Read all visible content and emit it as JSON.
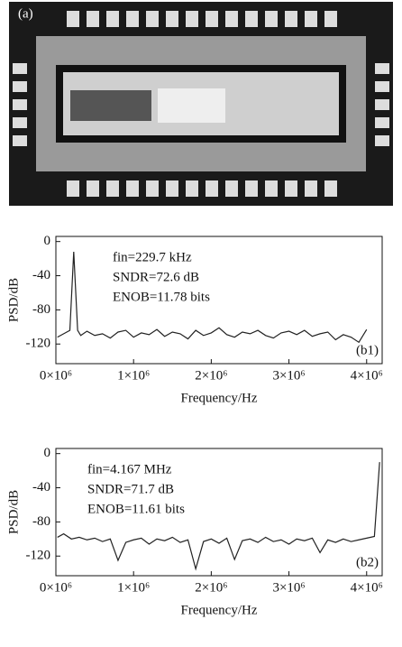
{
  "panel_a": {
    "label": "(a)"
  },
  "chart_data": [
    {
      "type": "line",
      "panel_label": "(b1)",
      "annotations": [
        "fin=229.7 kHz",
        "SNDR=72.6 dB",
        "ENOB=11.78 bits"
      ],
      "xlabel": "Frequency/Hz",
      "ylabel": "PSD/dB",
      "xlim": [
        0,
        4200000
      ],
      "ylim": [
        -143,
        6
      ],
      "xticks": [
        {
          "value": 0,
          "label": "0×10⁶"
        },
        {
          "value": 1000000,
          "label": "1×10⁶"
        },
        {
          "value": 2000000,
          "label": "2×10⁶"
        },
        {
          "value": 3000000,
          "label": "3×10⁶"
        },
        {
          "value": 4000000,
          "label": "4×10⁶"
        }
      ],
      "yticks": [
        0,
        -40,
        -80,
        -120
      ],
      "x": [
        20000,
        100000,
        180000,
        229700,
        280000,
        320000,
        400000,
        500000,
        600000,
        700000,
        800000,
        900000,
        1000000,
        1100000,
        1200000,
        1300000,
        1400000,
        1500000,
        1600000,
        1700000,
        1800000,
        1900000,
        2000000,
        2100000,
        2200000,
        2300000,
        2400000,
        2500000,
        2600000,
        2700000,
        2800000,
        2900000,
        3000000,
        3100000,
        3200000,
        3300000,
        3400000,
        3500000,
        3600000,
        3700000,
        3800000,
        3900000,
        4000000
      ],
      "series": [
        {
          "color": "#222222",
          "values": [
            -112,
            -108,
            -104,
            -12,
            -104,
            -110,
            -105,
            -110,
            -108,
            -113,
            -106,
            -104,
            -112,
            -107,
            -109,
            -103,
            -111,
            -106,
            -108,
            -114,
            -104,
            -110,
            -107,
            -101,
            -109,
            -112,
            -106,
            -108,
            -104,
            -110,
            -113,
            -107,
            -105,
            -109,
            -104,
            -111,
            -108,
            -106,
            -115,
            -109,
            -112,
            -118,
            -103
          ]
        }
      ]
    },
    {
      "type": "line",
      "panel_label": "(b2)",
      "annotations": [
        "fin=4.167 MHz",
        "SNDR=71.7 dB",
        "ENOB=11.61 bits"
      ],
      "xlabel": "Frequency/Hz",
      "ylabel": "PSD/dB",
      "xlim": [
        0,
        4200000
      ],
      "ylim": [
        -143,
        6
      ],
      "xticks": [
        {
          "value": 0,
          "label": "0×10⁶"
        },
        {
          "value": 1000000,
          "label": "1×10⁶"
        },
        {
          "value": 2000000,
          "label": "2×10⁶"
        },
        {
          "value": 3000000,
          "label": "3×10⁶"
        },
        {
          "value": 4000000,
          "label": "4×10⁶"
        }
      ],
      "yticks": [
        0,
        -40,
        -80,
        -120
      ],
      "x": [
        20000,
        100000,
        200000,
        300000,
        400000,
        500000,
        600000,
        700000,
        800000,
        900000,
        1000000,
        1100000,
        1200000,
        1300000,
        1400000,
        1500000,
        1600000,
        1700000,
        1800000,
        1900000,
        2000000,
        2100000,
        2200000,
        2300000,
        2400000,
        2500000,
        2600000,
        2700000,
        2800000,
        2900000,
        3000000,
        3100000,
        3200000,
        3300000,
        3400000,
        3500000,
        3600000,
        3700000,
        3800000,
        3900000,
        4000000,
        4100000,
        4167000
      ],
      "series": [
        {
          "color": "#222222",
          "values": [
            -98,
            -94,
            -100,
            -98,
            -101,
            -99,
            -103,
            -100,
            -125,
            -104,
            -101,
            -99,
            -106,
            -100,
            -102,
            -98,
            -104,
            -101,
            -135,
            -103,
            -100,
            -105,
            -99,
            -124,
            -102,
            -100,
            -104,
            -98,
            -103,
            -101,
            -106,
            -100,
            -102,
            -99,
            -116,
            -101,
            -104,
            -100,
            -103,
            -101,
            -99,
            -97,
            -10
          ]
        }
      ]
    }
  ]
}
